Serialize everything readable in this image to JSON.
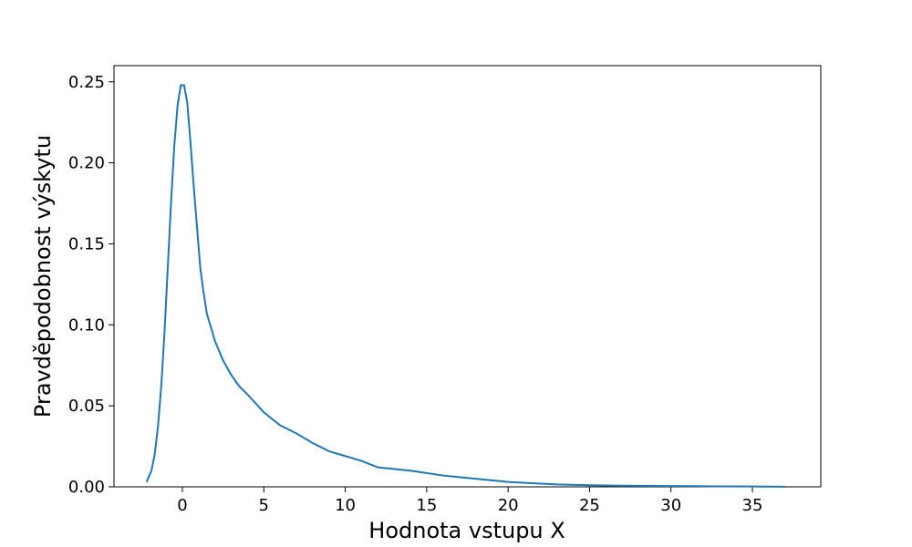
{
  "chart_data": {
    "type": "line",
    "xlabel": "Hodnota vstupu X",
    "ylabel": "Pravděpodobnost výskytu",
    "xlim": [
      -4.2,
      39.2
    ],
    "ylim": [
      0,
      0.26
    ],
    "xticks": [
      0,
      5,
      10,
      15,
      20,
      25,
      30,
      35
    ],
    "xtick_labels": [
      "0",
      "5",
      "10",
      "15",
      "20",
      "25",
      "30",
      "35"
    ],
    "yticks": [
      0,
      0.05,
      0.1,
      0.15,
      0.2,
      0.25
    ],
    "ytick_labels": [
      "0.00",
      "0.05",
      "0.10",
      "0.15",
      "0.20",
      "0.25"
    ],
    "grid": false,
    "color": "#1f77b4",
    "series": [
      {
        "x": [
          -2.2,
          -1.9,
          -1.7,
          -1.5,
          -1.3,
          -1.1,
          -0.9,
          -0.7,
          -0.5,
          -0.3,
          -0.1,
          0.1,
          0.3,
          0.5,
          0.7,
          0.9,
          1.1,
          1.3,
          1.5,
          2.0,
          2.5,
          3.0,
          3.5,
          4.0,
          5.0,
          6.0,
          7.0,
          8.0,
          9.0,
          10.0,
          11.0,
          12.0,
          14.0,
          16.0,
          17.0,
          18.0,
          20.0,
          22.0,
          23.0,
          25.0,
          27.0,
          30.0,
          33.0,
          35.0,
          37.0
        ],
        "y": [
          0.003,
          0.01,
          0.02,
          0.037,
          0.062,
          0.095,
          0.135,
          0.175,
          0.21,
          0.235,
          0.248,
          0.248,
          0.237,
          0.212,
          0.185,
          0.16,
          0.135,
          0.12,
          0.107,
          0.09,
          0.078,
          0.069,
          0.062,
          0.057,
          0.046,
          0.038,
          0.033,
          0.027,
          0.022,
          0.019,
          0.016,
          0.012,
          0.01,
          0.007,
          0.006,
          0.005,
          0.003,
          0.002,
          0.0015,
          0.001,
          0.0007,
          0.0005,
          0.0003,
          0.0002,
          0.0001
        ]
      }
    ]
  }
}
